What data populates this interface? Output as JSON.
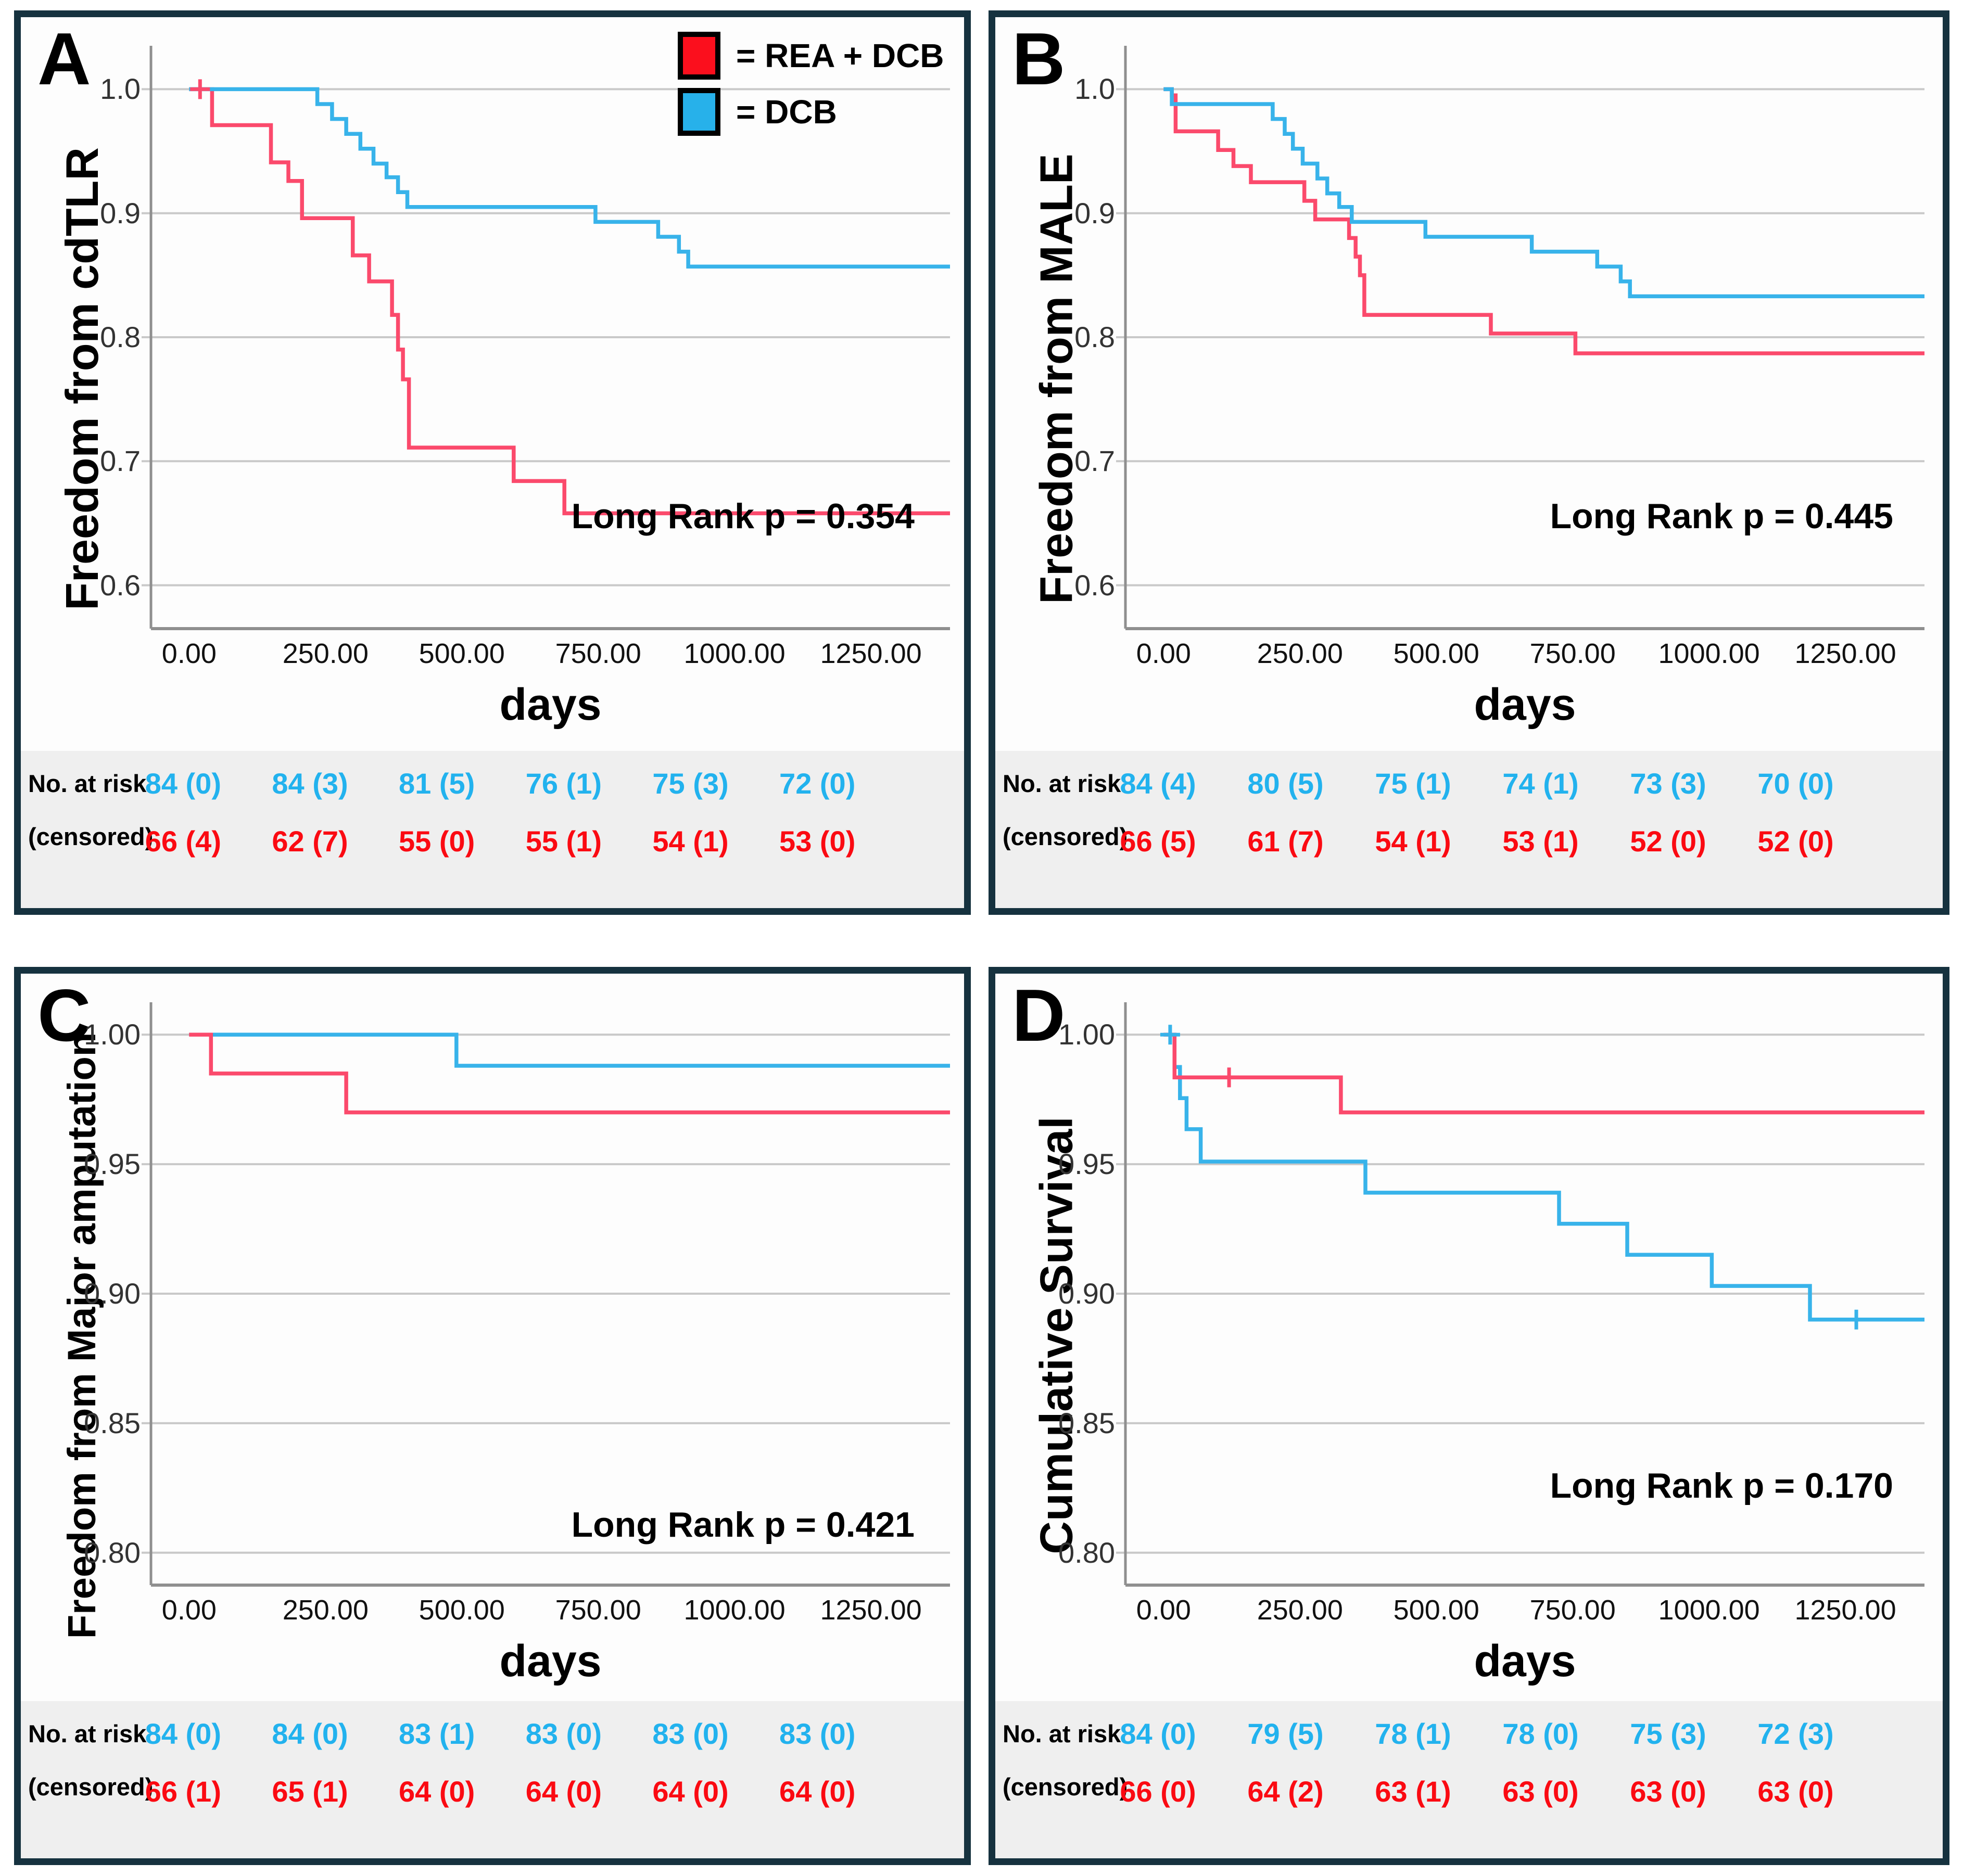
{
  "figure": {
    "border_color": "#16323f",
    "curve_red": "#fb4a6c",
    "curve_blue": "#38b3ea",
    "legend_red": "#fb0f1d",
    "legend_blue": "#27b1ea",
    "risk_red": "#fb0a12",
    "risk_blue": "#22b2ee",
    "grid_color": "#c9c9c9",
    "axis_color": "#8f8f8f",
    "risk_bg": "#efefef"
  },
  "legend": {
    "items": [
      {
        "label": "= REA + DCB",
        "color": "red"
      },
      {
        "label": "= DCB",
        "color": "blue"
      }
    ]
  },
  "risk_header": {
    "line1": "No. at risk",
    "line2": "(censored)"
  },
  "x_axis": {
    "label": "days",
    "xlim": [
      -70,
      1395
    ],
    "ticks": [
      {
        "v": 0,
        "label": "0.00"
      },
      {
        "v": 250,
        "label": "250.00"
      },
      {
        "v": 500,
        "label": "500.00"
      },
      {
        "v": 750,
        "label": "750.00"
      },
      {
        "v": 1000,
        "label": "1000.00"
      },
      {
        "v": 1250,
        "label": "1250.00"
      }
    ]
  },
  "chart_data": [
    {
      "id": "A",
      "type": "line",
      "subtype": "kaplan_meier_step",
      "letter": "A",
      "ylabel": "Freedom from cdTLR",
      "p_label": "Long Rank p = 0.354",
      "ylim": [
        0.565,
        1.035
      ],
      "y_ticks": [
        {
          "v": 1.0,
          "label": "1.0"
        },
        {
          "v": 0.9,
          "label": "0.9"
        },
        {
          "v": 0.8,
          "label": "0.8"
        },
        {
          "v": 0.7,
          "label": "0.7"
        },
        {
          "v": 0.6,
          "label": "0.6"
        }
      ],
      "p_label_top": 920,
      "series": [
        {
          "name": "REA + DCB",
          "color": "red",
          "points": [
            [
              0,
              1.0
            ],
            [
              42,
              1.0
            ],
            [
              42,
              0.971
            ],
            [
              150,
              0.971
            ],
            [
              150,
              0.941
            ],
            [
              182,
              0.941
            ],
            [
              182,
              0.926
            ],
            [
              207,
              0.926
            ],
            [
              207,
              0.896
            ],
            [
              300,
              0.896
            ],
            [
              300,
              0.866
            ],
            [
              330,
              0.866
            ],
            [
              330,
              0.845
            ],
            [
              372,
              0.845
            ],
            [
              372,
              0.818
            ],
            [
              383,
              0.818
            ],
            [
              383,
              0.79
            ],
            [
              392,
              0.79
            ],
            [
              392,
              0.766
            ],
            [
              403,
              0.766
            ],
            [
              403,
              0.711
            ],
            [
              595,
              0.711
            ],
            [
              595,
              0.684
            ],
            [
              688,
              0.684
            ],
            [
              688,
              0.658
            ],
            [
              1395,
              0.658
            ]
          ]
        },
        {
          "name": "DCB",
          "color": "blue",
          "points": [
            [
              0,
              1.0
            ],
            [
              235,
              1.0
            ],
            [
              235,
              0.988
            ],
            [
              262,
              0.988
            ],
            [
              262,
              0.976
            ],
            [
              288,
              0.976
            ],
            [
              288,
              0.964
            ],
            [
              314,
              0.964
            ],
            [
              314,
              0.952
            ],
            [
              338,
              0.952
            ],
            [
              338,
              0.94
            ],
            [
              362,
              0.94
            ],
            [
              362,
              0.929
            ],
            [
              383,
              0.929
            ],
            [
              383,
              0.917
            ],
            [
              400,
              0.917
            ],
            [
              400,
              0.905
            ],
            [
              745,
              0.905
            ],
            [
              745,
              0.893
            ],
            [
              860,
              0.893
            ],
            [
              860,
              0.881
            ],
            [
              898,
              0.881
            ],
            [
              898,
              0.869
            ],
            [
              915,
              0.869
            ],
            [
              915,
              0.857
            ],
            [
              1395,
              0.857
            ]
          ]
        }
      ],
      "censors": [
        {
          "color": "red",
          "x": 20,
          "y": 1.0
        }
      ],
      "risk_table": {
        "dcb": [
          "84 (0)",
          "84 (3)",
          "81 (5)",
          "76 (1)",
          "75 (3)",
          "72 (0)"
        ],
        "rea": [
          "66 (4)",
          "62 (7)",
          "55 (0)",
          "55 (1)",
          "54 (1)",
          "53 (0)"
        ]
      }
    },
    {
      "id": "B",
      "type": "line",
      "subtype": "kaplan_meier_step",
      "letter": "B",
      "ylabel": "Freedom from MALE",
      "p_label": "Long Rank p = 0.445",
      "ylim": [
        0.565,
        1.035
      ],
      "y_ticks": [
        {
          "v": 1.0,
          "label": "1.0"
        },
        {
          "v": 0.9,
          "label": "0.9"
        },
        {
          "v": 0.8,
          "label": "0.8"
        },
        {
          "v": 0.7,
          "label": "0.7"
        },
        {
          "v": 0.6,
          "label": "0.6"
        }
      ],
      "p_label_top": 920,
      "series": [
        {
          "name": "REA + DCB",
          "color": "red",
          "points": [
            [
              0,
              1.0
            ],
            [
              15,
              1.0
            ],
            [
              15,
              0.995
            ],
            [
              22,
              0.995
            ],
            [
              22,
              0.966
            ],
            [
              100,
              0.966
            ],
            [
              100,
              0.951
            ],
            [
              128,
              0.951
            ],
            [
              128,
              0.938
            ],
            [
              160,
              0.938
            ],
            [
              160,
              0.925
            ],
            [
              258,
              0.925
            ],
            [
              258,
              0.91
            ],
            [
              278,
              0.91
            ],
            [
              278,
              0.895
            ],
            [
              340,
              0.895
            ],
            [
              340,
              0.88
            ],
            [
              352,
              0.88
            ],
            [
              352,
              0.865
            ],
            [
              360,
              0.865
            ],
            [
              360,
              0.85
            ],
            [
              368,
              0.85
            ],
            [
              368,
              0.818
            ],
            [
              600,
              0.818
            ],
            [
              600,
              0.803
            ],
            [
              755,
              0.803
            ],
            [
              755,
              0.787
            ],
            [
              1395,
              0.787
            ]
          ]
        },
        {
          "name": "DCB",
          "color": "blue",
          "points": [
            [
              0,
              1.0
            ],
            [
              15,
              1.0
            ],
            [
              15,
              0.988
            ],
            [
              200,
              0.988
            ],
            [
              200,
              0.976
            ],
            [
              222,
              0.976
            ],
            [
              222,
              0.964
            ],
            [
              237,
              0.964
            ],
            [
              237,
              0.952
            ],
            [
              255,
              0.952
            ],
            [
              255,
              0.94
            ],
            [
              282,
              0.94
            ],
            [
              282,
              0.928
            ],
            [
              300,
              0.928
            ],
            [
              300,
              0.916
            ],
            [
              322,
              0.916
            ],
            [
              322,
              0.905
            ],
            [
              345,
              0.905
            ],
            [
              345,
              0.893
            ],
            [
              480,
              0.893
            ],
            [
              480,
              0.881
            ],
            [
              675,
              0.881
            ],
            [
              675,
              0.869
            ],
            [
              795,
              0.869
            ],
            [
              795,
              0.857
            ],
            [
              838,
              0.857
            ],
            [
              838,
              0.845
            ],
            [
              855,
              0.845
            ],
            [
              855,
              0.833
            ],
            [
              1395,
              0.833
            ]
          ]
        }
      ],
      "censors": [],
      "risk_table": {
        "dcb": [
          "84 (4)",
          "80 (5)",
          "75 (1)",
          "74 (1)",
          "73 (3)",
          "70 (0)"
        ],
        "rea": [
          "66 (5)",
          "61 (7)",
          "54 (1)",
          "53 (1)",
          "52 (0)",
          "52 (0)"
        ]
      }
    },
    {
      "id": "C",
      "type": "line",
      "subtype": "kaplan_meier_step",
      "letter": "C",
      "ylabel": "Freedom from Major amputation",
      "p_label": "Long Rank p = 0.421",
      "ylim": [
        0.7875,
        1.0125
      ],
      "y_ticks": [
        {
          "v": 1.0,
          "label": "1.00"
        },
        {
          "v": 0.95,
          "label": "0.95"
        },
        {
          "v": 0.9,
          "label": "0.90"
        },
        {
          "v": 0.85,
          "label": "0.85"
        },
        {
          "v": 0.8,
          "label": "0.80"
        }
      ],
      "p_label_top": 1020,
      "series": [
        {
          "name": "DCB",
          "color": "blue",
          "points": [
            [
              0,
              1.0
            ],
            [
              490,
              1.0
            ],
            [
              490,
              0.988
            ],
            [
              1395,
              0.988
            ]
          ]
        },
        {
          "name": "REA + DCB",
          "color": "red",
          "points": [
            [
              0,
              1.0
            ],
            [
              40,
              1.0
            ],
            [
              40,
              0.985
            ],
            [
              288,
              0.985
            ],
            [
              288,
              0.97
            ],
            [
              1395,
              0.97
            ]
          ]
        }
      ],
      "censors": [],
      "risk_table": {
        "dcb": [
          "84 (0)",
          "84 (0)",
          "83 (1)",
          "83 (0)",
          "83 (0)",
          "83 (0)"
        ],
        "rea": [
          "66 (1)",
          "65 (1)",
          "64 (0)",
          "64 (0)",
          "64 (0)",
          "64 (0)"
        ]
      }
    },
    {
      "id": "D",
      "type": "line",
      "subtype": "kaplan_meier_step",
      "letter": "D",
      "ylabel": "Cumulative Survival",
      "p_label": "Long Rank p = 0.170",
      "ylim": [
        0.7875,
        1.0125
      ],
      "y_ticks": [
        {
          "v": 1.0,
          "label": "1.00"
        },
        {
          "v": 0.95,
          "label": "0.95"
        },
        {
          "v": 0.9,
          "label": "0.90"
        },
        {
          "v": 0.85,
          "label": "0.85"
        },
        {
          "v": 0.8,
          "label": "0.80"
        }
      ],
      "p_label_top": 945,
      "series": [
        {
          "name": "DCB",
          "color": "blue",
          "points": [
            [
              0,
              1.0
            ],
            [
              20,
              1.0
            ],
            [
              20,
              0.9875
            ],
            [
              30,
              0.9875
            ],
            [
              30,
              0.9755
            ],
            [
              42,
              0.9755
            ],
            [
              42,
              0.9635
            ],
            [
              68,
              0.9635
            ],
            [
              68,
              0.951
            ],
            [
              370,
              0.951
            ],
            [
              370,
              0.939
            ],
            [
              725,
              0.939
            ],
            [
              725,
              0.927
            ],
            [
              850,
              0.927
            ],
            [
              850,
              0.915
            ],
            [
              1005,
              0.915
            ],
            [
              1005,
              0.903
            ],
            [
              1185,
              0.903
            ],
            [
              1185,
              0.89
            ],
            [
              1395,
              0.89
            ]
          ]
        },
        {
          "name": "REA + DCB",
          "color": "red",
          "points": [
            [
              0,
              1.0
            ],
            [
              20,
              1.0
            ],
            [
              20,
              0.9835
            ],
            [
              325,
              0.9835
            ],
            [
              325,
              0.97
            ],
            [
              1395,
              0.97
            ]
          ]
        }
      ],
      "censors": [
        {
          "color": "blue",
          "x": 12,
          "y": 1.0
        },
        {
          "color": "red",
          "x": 120,
          "y": 0.9835
        },
        {
          "color": "blue",
          "x": 1270,
          "y": 0.89
        }
      ],
      "risk_table": {
        "dcb": [
          "84 (0)",
          "79 (5)",
          "78 (1)",
          "78 (0)",
          "75 (3)",
          "72 (3)"
        ],
        "rea": [
          "66 (0)",
          "64 (2)",
          "63 (1)",
          "63 (0)",
          "63 (0)",
          "63 (0)"
        ]
      }
    }
  ]
}
